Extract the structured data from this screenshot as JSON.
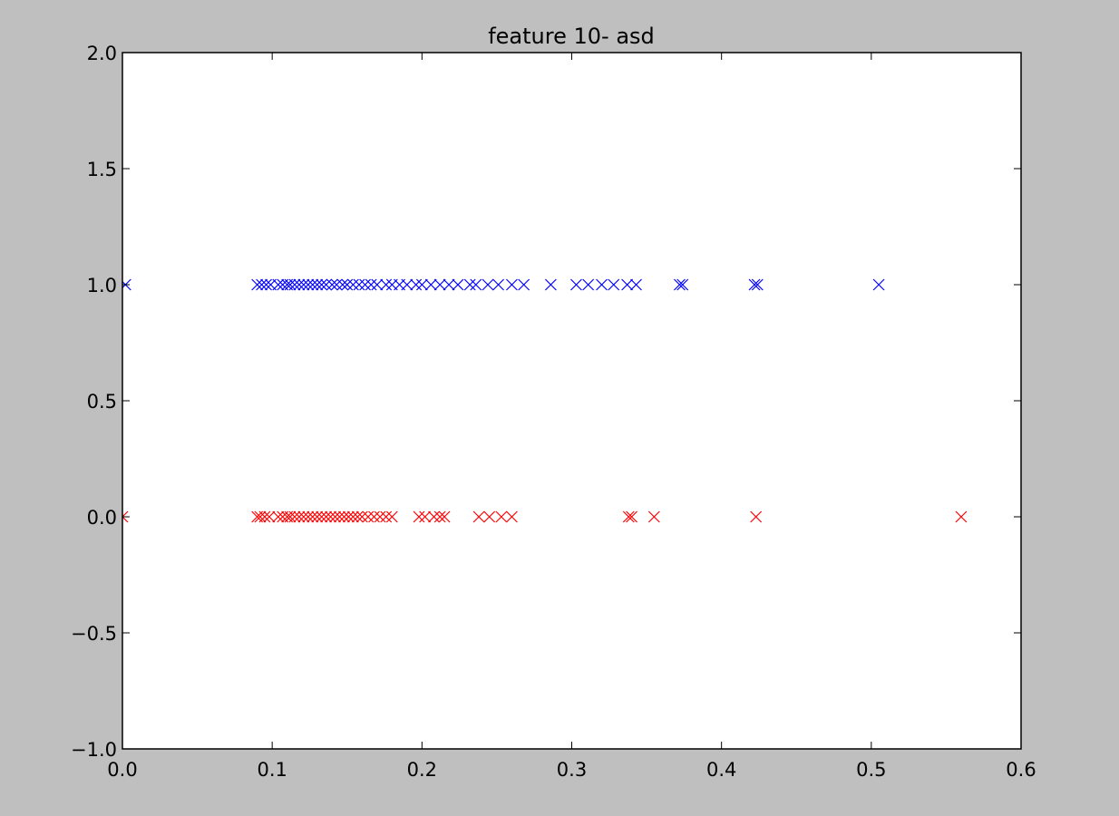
{
  "colors": {
    "figure_background": "#bfbfbf",
    "axes_background": "#ffffff",
    "axis_color": "#000000",
    "series_0": "#ff0000",
    "series_1": "#0000ff"
  },
  "chart_data": {
    "type": "scatter",
    "title": "feature 10- asd",
    "xlabel": "",
    "ylabel": "",
    "xlim": [
      0.0,
      0.6
    ],
    "ylim": [
      -1.0,
      2.0
    ],
    "grid": false,
    "legend": "none",
    "marker": "x",
    "x_ticks": [
      0.0,
      0.1,
      0.2,
      0.3,
      0.4,
      0.5,
      0.6
    ],
    "x_tick_labels": [
      "0.0",
      "0.1",
      "0.2",
      "0.3",
      "0.4",
      "0.5",
      "0.6"
    ],
    "y_ticks": [
      -1.0,
      -0.5,
      0.0,
      0.5,
      1.0,
      1.5,
      2.0
    ],
    "y_tick_labels": [
      "−1.0",
      "−0.5",
      "0.0",
      "0.5",
      "1.0",
      "1.5",
      "2.0"
    ],
    "series": [
      {
        "color": "#ff0000",
        "y": 0,
        "x": [
          0.0,
          0.09,
          0.092,
          0.095,
          0.098,
          0.104,
          0.107,
          0.11,
          0.112,
          0.115,
          0.118,
          0.121,
          0.124,
          0.127,
          0.13,
          0.133,
          0.136,
          0.139,
          0.142,
          0.145,
          0.148,
          0.151,
          0.154,
          0.157,
          0.16,
          0.164,
          0.168,
          0.172,
          0.176,
          0.18,
          0.198,
          0.202,
          0.208,
          0.212,
          0.215,
          0.238,
          0.245,
          0.253,
          0.26,
          0.338,
          0.34,
          0.355,
          0.423,
          0.56
        ]
      },
      {
        "color": "#0000ff",
        "y": 1,
        "x": [
          0.002,
          0.09,
          0.093,
          0.096,
          0.099,
          0.104,
          0.107,
          0.11,
          0.112,
          0.115,
          0.118,
          0.121,
          0.124,
          0.127,
          0.13,
          0.133,
          0.136,
          0.14,
          0.143,
          0.147,
          0.15,
          0.154,
          0.158,
          0.162,
          0.166,
          0.17,
          0.176,
          0.18,
          0.185,
          0.19,
          0.196,
          0.2,
          0.206,
          0.212,
          0.218,
          0.224,
          0.232,
          0.236,
          0.244,
          0.251,
          0.26,
          0.268,
          0.286,
          0.303,
          0.311,
          0.32,
          0.328,
          0.337,
          0.343,
          0.372,
          0.374,
          0.422,
          0.424,
          0.505
        ]
      }
    ]
  }
}
